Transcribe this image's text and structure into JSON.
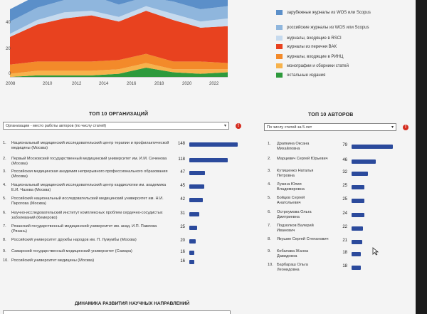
{
  "chart": {
    "y_ticks": [
      "40",
      "20",
      "0"
    ],
    "x_ticks": [
      "2008",
      "2010",
      "2012",
      "2014",
      "2016",
      "2018",
      "2020",
      "2022"
    ],
    "colors": {
      "foreign_wos": "#5b8fc9",
      "russian_wos": "#8fb6dd",
      "rsci": "#c6daee",
      "vak": "#e8421f",
      "rinc": "#f38a2a",
      "monographs": "#f7b24b",
      "other": "#2e9a3c"
    }
  },
  "chart_data": {
    "type": "area",
    "x": [
      2006,
      2008,
      2010,
      2012,
      2014,
      2016,
      2018,
      2020,
      2022
    ],
    "series": [
      {
        "name": "остальные издания",
        "values": [
          0,
          1,
          1,
          1,
          2,
          6,
          3,
          2,
          3
        ]
      },
      {
        "name": "монографии и сборники статей",
        "values": [
          2,
          3,
          3,
          3,
          3,
          3,
          2,
          3,
          2
        ]
      },
      {
        "name": "журналы, входящие в РИНЦ",
        "values": [
          6,
          6,
          6,
          6,
          6,
          6,
          5,
          5,
          4
        ]
      },
      {
        "name": "журналы из перечня ВАК",
        "values": [
          18,
          24,
          28,
          30,
          25,
          28,
          27,
          22,
          24
        ]
      },
      {
        "name": "журналы, входящие в RSCI",
        "values": [
          2,
          3,
          4,
          3,
          3,
          3,
          4,
          4,
          5
        ]
      },
      {
        "name": "российские журналы из WOS или Scopus",
        "values": [
          8,
          8,
          8,
          10,
          8,
          6,
          8,
          8,
          8
        ]
      },
      {
        "name": "зарубежные журналы из WOS или Scopus",
        "values": [
          8,
          8,
          10,
          10,
          12,
          8,
          10,
          14,
          14
        ]
      }
    ],
    "ylim": [
      0,
      50
    ]
  },
  "legend": [
    {
      "label": "зарубежные журналы из WOS или Scopus",
      "color": "#5b8fc9"
    },
    {
      "label": "российские журналы из WOS или Scopus",
      "color": "#8fb6dd"
    },
    {
      "label": "журналы, входящие в RSCI",
      "color": "#c6daee"
    },
    {
      "label": "журналы из перечня ВАК",
      "color": "#e8421f"
    },
    {
      "label": "журналы, входящие в РИНЦ",
      "color": "#f38a2a"
    },
    {
      "label": "монографии и сборники статей",
      "color": "#f7b24b"
    },
    {
      "label": "остальные издания",
      "color": "#2e9a3c"
    }
  ],
  "orgs": {
    "title": "ТОП 10 ОРГАНИЗАЦИЙ",
    "select_value": "Организации - место работы авторов (по числу статей)",
    "info": "!",
    "items": [
      {
        "num": "1.",
        "name": "Национальный медицинский исследовательский центр терапии и профилактической медицины (Москва)",
        "count": "148",
        "value": 148
      },
      {
        "num": "2.",
        "name": "Первый Московский государственный медицинский университет им. И.М. Сеченова (Москва)",
        "count": "118",
        "value": 118
      },
      {
        "num": "3.",
        "name": "Российская медицинская академия непрерывного профессионального образования (Москва)",
        "count": "47",
        "value": 47
      },
      {
        "num": "4.",
        "name": "Национальный медицинский исследовательский центр кардиологии им. академика Е.И. Чазова (Москва)",
        "count": "45",
        "value": 45
      },
      {
        "num": "5.",
        "name": "Российский национальный исследовательский медицинский университет им. Н.И. Пирогова (Москва)",
        "count": "42",
        "value": 42
      },
      {
        "num": "6.",
        "name": "Научно-исследовательский институт комплексных проблем сердечно-сосудистых заболеваний (Кемерово)",
        "count": "31",
        "value": 31
      },
      {
        "num": "7.",
        "name": "Рязанский государственный медицинский университет им. акад. И.П. Павлова (Рязань)",
        "count": "25",
        "value": 25
      },
      {
        "num": "8.",
        "name": "Российский университет дружбы народов им. П. Лумумбы (Москва)",
        "count": "20",
        "value": 20
      },
      {
        "num": "9.",
        "name": "Самарский государственный медицинский университет (Самара)",
        "count": "16",
        "value": 16
      },
      {
        "num": "10.",
        "name": "Российский университет медицины (Москва)",
        "count": "16",
        "value": 16
      }
    ]
  },
  "authors": {
    "title": "ТОП 10 АВТОРОВ",
    "select_value": "По числу статей за 5 лет",
    "info": "!",
    "items": [
      {
        "num": "1.",
        "name": "Драпкина Оксана Михайловна",
        "count": "79",
        "value": 79
      },
      {
        "num": "2.",
        "name": "Марцевич Сергей Юрьевич",
        "count": "46",
        "value": 46
      },
      {
        "num": "3.",
        "name": "Кутишенко Наталья Петровна",
        "count": "32",
        "value": 32
      },
      {
        "num": "4.",
        "name": "Лукина Юлия Владимировна",
        "count": "25",
        "value": 25
      },
      {
        "num": "5.",
        "name": "Бойцов Сергей Анатольевич",
        "count": "25",
        "value": 25
      },
      {
        "num": "6.",
        "name": "Остроумова Ольга Дмитриевна",
        "count": "24",
        "value": 24
      },
      {
        "num": "7.",
        "name": "Подзолков Валерий Иванович",
        "count": "22",
        "value": 22
      },
      {
        "num": "8.",
        "name": "Якушин Сергей Степанович",
        "count": "21",
        "value": 21
      },
      {
        "num": "9.",
        "name": "Кобалава Жанна Давидовна",
        "count": "18",
        "value": 18
      },
      {
        "num": "10.",
        "name": "Барбараш Ольга Леонидовна",
        "count": "18",
        "value": 18
      }
    ]
  },
  "bottom": {
    "title": "ДИНАМИКА РАЗВИТИЯ НАУЧНЫХ НАПРАВЛЕНИЙ"
  }
}
